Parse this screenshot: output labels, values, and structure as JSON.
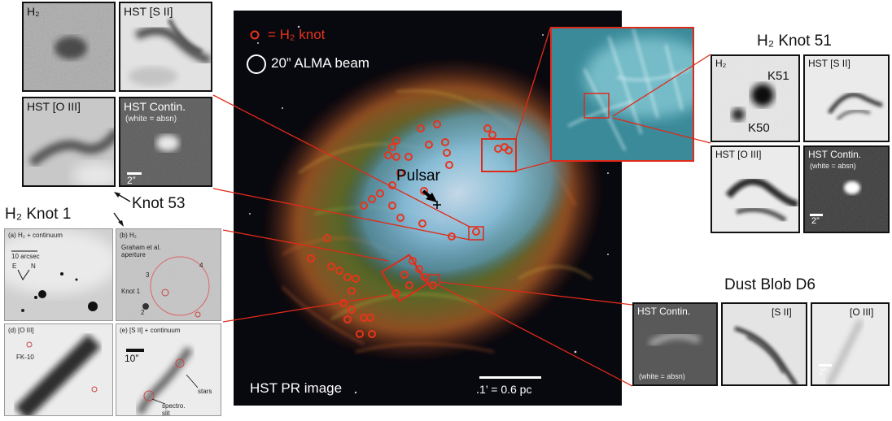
{
  "main_image": {
    "legend_knot": "= H₂ knot",
    "legend_beam": "20” ALMA beam",
    "pulsar_label": "Pulsar",
    "credit": "HST PR image",
    "scalebar_label": "1’ = 0.6 pc",
    "colors": {
      "knot_marker": "#e8331c",
      "connector": "#e02a18",
      "nebula_core": "#8fc8e8",
      "filaments": "#c9a23a"
    }
  },
  "knot53": {
    "heading": "Knot 53",
    "panels": [
      {
        "label": "H₂"
      },
      {
        "label": "HST [S II]"
      },
      {
        "label": "HST [O III]"
      },
      {
        "label": "HST Contin.",
        "note": "(white = absn)",
        "scale": "2”"
      }
    ]
  },
  "knot1": {
    "heading": "H₂ Knot 1",
    "panels": [
      {
        "label": "(a) H₂ + continuum",
        "extra": [
          "10 arcsec",
          "E",
          "N"
        ]
      },
      {
        "label": "(b) H₂",
        "extra": [
          "Graham et al. aperture",
          "3",
          "4",
          "Knot 1",
          "2"
        ]
      },
      {
        "label": "(d) [O III]",
        "extra": [
          "FK-10"
        ]
      },
      {
        "label": "(e) [S II] + continuum",
        "extra": [
          "10”",
          "stars",
          "spectro. slit"
        ]
      }
    ]
  },
  "knot51": {
    "heading": "H₂ Knot 51",
    "panels": [
      {
        "label": "H₂",
        "k51": "K51",
        "k50": "K50"
      },
      {
        "label": "HST [S II]"
      },
      {
        "label": "HST [O III]"
      },
      {
        "label": "HST Contin.",
        "note": "(white = absn)",
        "scale": "2”"
      }
    ]
  },
  "blob": {
    "heading": "Dust Blob D6",
    "panels": [
      {
        "label": "HST Contin.",
        "note": "(white = absn)"
      },
      {
        "label": "[S II]"
      },
      {
        "label": "[O III]",
        "scale": "2”"
      }
    ]
  }
}
